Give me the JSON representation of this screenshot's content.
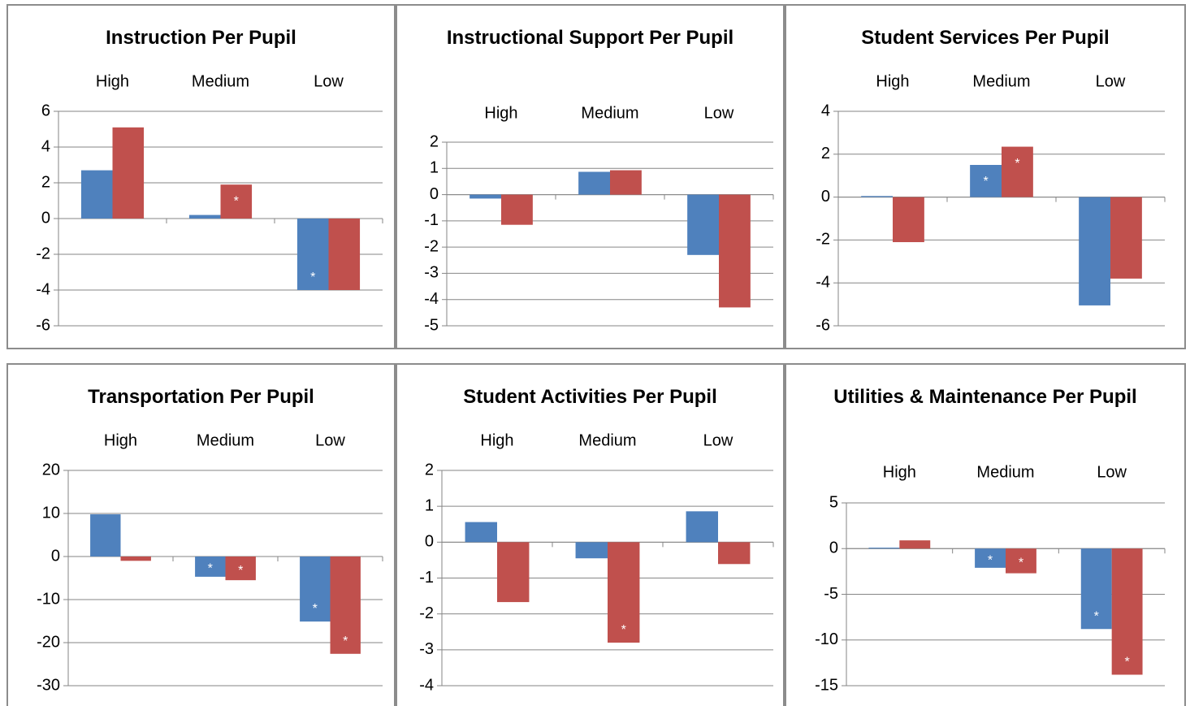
{
  "chart_data": [
    {
      "type": "bar",
      "title": "Instruction Per Pupil",
      "categories": [
        "High",
        "Medium",
        "Low"
      ],
      "series": [
        {
          "color": "#4f81bd",
          "values": [
            2.7,
            0.2,
            -4.0
          ],
          "annotations": [
            null,
            null,
            "*"
          ]
        },
        {
          "color": "#c0504d",
          "values": [
            5.1,
            1.9,
            -4.0
          ],
          "annotations": [
            null,
            "*",
            null
          ]
        }
      ],
      "ylim": [
        -6,
        6
      ],
      "yticks": [
        -6,
        -4,
        -2,
        0,
        2,
        4,
        6
      ],
      "grid": true
    },
    {
      "type": "bar",
      "title": "Instructional Support Per Pupil",
      "categories": [
        "High",
        "Medium",
        "Low"
      ],
      "series": [
        {
          "color": "#4f81bd",
          "values": [
            -0.15,
            0.87,
            -2.3
          ],
          "annotations": [
            null,
            null,
            null
          ]
        },
        {
          "color": "#c0504d",
          "values": [
            -1.15,
            0.93,
            -4.3
          ],
          "annotations": [
            null,
            null,
            null
          ]
        }
      ],
      "ylim": [
        -5,
        2
      ],
      "yticks": [
        -5,
        -4,
        -3,
        -2,
        -1,
        0,
        1,
        2
      ],
      "grid": true
    },
    {
      "type": "bar",
      "title": "Student Services Per Pupil",
      "categories": [
        "High",
        "Medium",
        "Low"
      ],
      "series": [
        {
          "color": "#4f81bd",
          "values": [
            0.05,
            1.5,
            -5.05
          ],
          "annotations": [
            null,
            "*",
            null
          ]
        },
        {
          "color": "#c0504d",
          "values": [
            -2.1,
            2.35,
            -3.8
          ],
          "annotations": [
            null,
            "*",
            null
          ]
        }
      ],
      "ylim": [
        -6,
        4
      ],
      "yticks": [
        -6,
        -4,
        -2,
        0,
        2,
        4
      ],
      "grid": true
    },
    {
      "type": "bar",
      "title": "Transportation Per Pupil",
      "categories": [
        "High",
        "Medium",
        "Low"
      ],
      "series": [
        {
          "color": "#4f81bd",
          "values": [
            9.8,
            -4.7,
            -15.1
          ],
          "annotations": [
            null,
            "*",
            "*"
          ]
        },
        {
          "color": "#c0504d",
          "values": [
            -1.0,
            -5.5,
            -22.6
          ],
          "annotations": [
            null,
            "*",
            "*"
          ]
        }
      ],
      "ylim": [
        -30,
        20
      ],
      "yticks": [
        -30,
        -20,
        -10,
        0,
        10,
        20
      ],
      "grid": true
    },
    {
      "type": "bar",
      "title": "Student Activities Per Pupil",
      "categories": [
        "High",
        "Medium",
        "Low"
      ],
      "series": [
        {
          "color": "#4f81bd",
          "values": [
            0.56,
            -0.45,
            0.86
          ],
          "annotations": [
            null,
            null,
            null
          ]
        },
        {
          "color": "#c0504d",
          "values": [
            -1.67,
            -2.8,
            -0.61
          ],
          "annotations": [
            null,
            "*",
            null
          ]
        }
      ],
      "ylim": [
        -4,
        2
      ],
      "yticks": [
        -4,
        -3,
        -2,
        -1,
        0,
        1,
        2
      ],
      "grid": true
    },
    {
      "type": "bar",
      "title": "Utilities & Maintenance Per Pupil",
      "categories": [
        "High",
        "Medium",
        "Low"
      ],
      "series": [
        {
          "color": "#4f81bd",
          "values": [
            0.1,
            -2.1,
            -8.8
          ],
          "annotations": [
            null,
            "*",
            "*"
          ]
        },
        {
          "color": "#c0504d",
          "values": [
            0.9,
            -2.7,
            -13.8
          ],
          "annotations": [
            null,
            "*",
            "*"
          ]
        }
      ],
      "ylim": [
        -15,
        5
      ],
      "yticks": [
        -15,
        -10,
        -5,
        0,
        5
      ],
      "grid": true
    }
  ]
}
